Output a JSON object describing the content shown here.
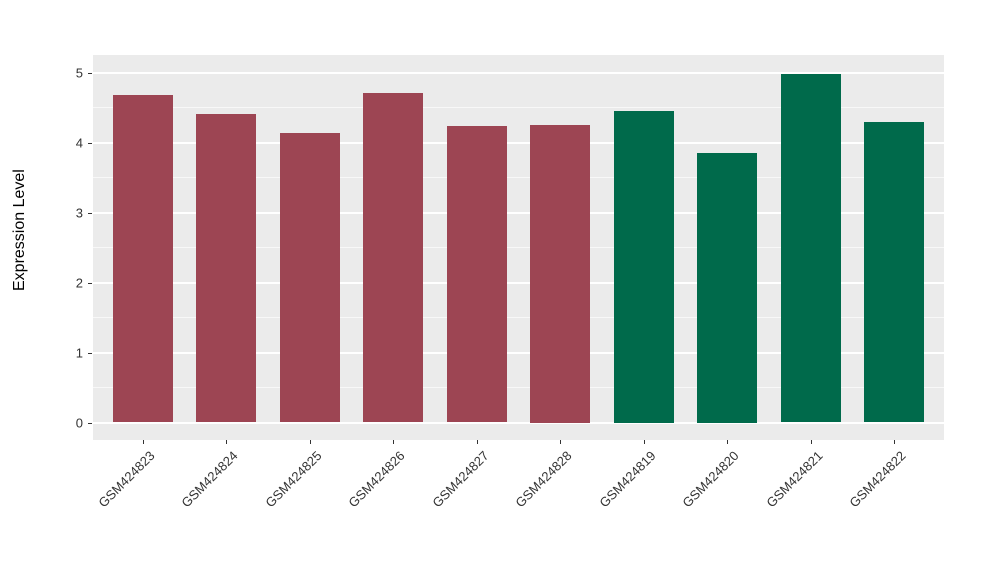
{
  "chart_data": {
    "type": "bar",
    "title": "",
    "xlabel": "",
    "ylabel": "Expression Level",
    "categories": [
      "GSM424823",
      "GSM424824",
      "GSM424825",
      "GSM424826",
      "GSM424827",
      "GSM424828",
      "GSM424819",
      "GSM424820",
      "GSM424821",
      "GSM424822"
    ],
    "values": [
      4.68,
      4.41,
      4.14,
      4.71,
      4.23,
      4.25,
      4.45,
      3.85,
      4.98,
      4.29
    ],
    "bar_colors": [
      "#9D4553",
      "#9D4553",
      "#9D4553",
      "#9D4553",
      "#9D4553",
      "#9D4553",
      "#006A4B",
      "#006A4B",
      "#006A4B",
      "#006A4B"
    ],
    "ylim": [
      0,
      5
    ],
    "yticks": [
      0,
      1,
      2,
      3,
      4,
      5
    ],
    "yminor": [
      0.5,
      1.5,
      2.5,
      3.5,
      4.5
    ],
    "grid": "major-and-minor",
    "legend_position": "none",
    "panel_background": "#EBEBEB",
    "grid_color": "#FFFFFF",
    "axis_text_color": "#333333",
    "group_colors": {
      "left_group": "#9D4553",
      "right_group": "#006A4B"
    }
  }
}
